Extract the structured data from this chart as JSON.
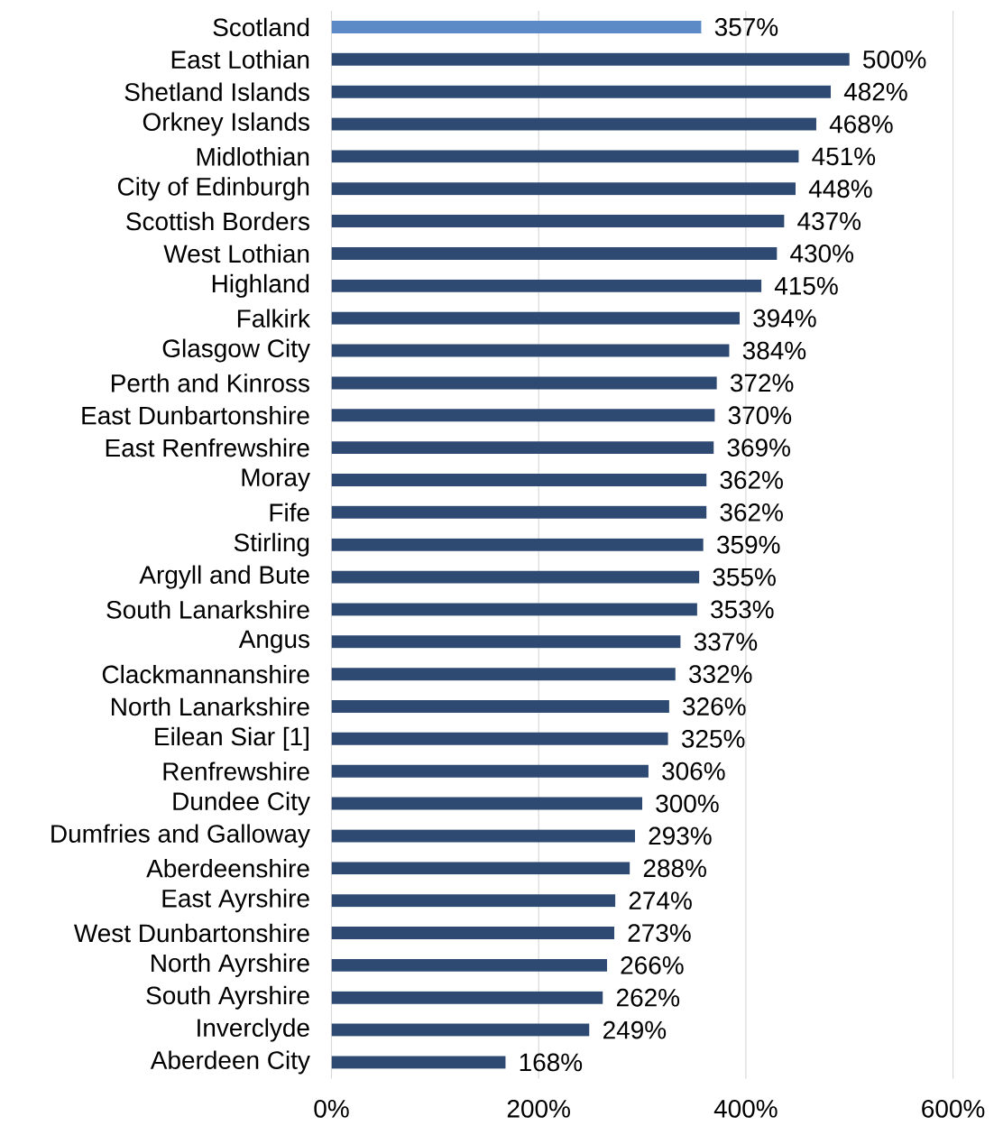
{
  "chart_data": {
    "type": "bar",
    "orientation": "horizontal",
    "categories": [
      "Scotland",
      "East Lothian",
      "Shetland Islands",
      "Orkney Islands",
      "Midlothian",
      "City of Edinburgh",
      "Scottish Borders",
      "West Lothian",
      "Highland",
      "Falkirk",
      "Glasgow City",
      "Perth and Kinross",
      "East Dunbartonshire",
      "East Renfrewshire",
      "Moray",
      "Fife",
      "Stirling",
      "Argyll and Bute",
      "South Lanarkshire",
      "Angus",
      "Clackmannanshire",
      "North Lanarkshire",
      "Eilean Siar [1]",
      "Renfrewshire",
      "Dundee City",
      "Dumfries and Galloway",
      "Aberdeenshire",
      "East Ayrshire",
      "West Dunbartonshire",
      "North Ayrshire",
      "South Ayrshire",
      "Inverclyde",
      "Aberdeen City"
    ],
    "values": [
      357,
      500,
      482,
      468,
      451,
      448,
      437,
      430,
      415,
      394,
      384,
      372,
      370,
      369,
      362,
      362,
      359,
      355,
      353,
      337,
      332,
      326,
      325,
      306,
      300,
      293,
      288,
      274,
      273,
      266,
      262,
      249,
      168
    ],
    "value_labels": [
      "357%",
      "500%",
      "482%",
      "468%",
      "451%",
      "448%",
      "437%",
      "430%",
      "415%",
      "394%",
      "384%",
      "372%",
      "370%",
      "369%",
      "362%",
      "362%",
      "359%",
      "355%",
      "353%",
      "337%",
      "332%",
      "326%",
      "325%",
      "306%",
      "300%",
      "293%",
      "288%",
      "274%",
      "273%",
      "266%",
      "262%",
      "249%",
      "168%"
    ],
    "colors": [
      "#5b8ac6",
      "#2e4a73",
      "#2e4a73",
      "#2e4a73",
      "#2e4a73",
      "#2e4a73",
      "#2e4a73",
      "#2e4a73",
      "#2e4a73",
      "#2e4a73",
      "#2e4a73",
      "#2e4a73",
      "#2e4a73",
      "#2e4a73",
      "#2e4a73",
      "#2e4a73",
      "#2e4a73",
      "#2e4a73",
      "#2e4a73",
      "#2e4a73",
      "#2e4a73",
      "#2e4a73",
      "#2e4a73",
      "#2e4a73",
      "#2e4a73",
      "#2e4a73",
      "#2e4a73",
      "#2e4a73",
      "#2e4a73",
      "#2e4a73",
      "#2e4a73",
      "#2e4a73",
      "#2e4a73"
    ],
    "xlim": [
      0,
      600
    ],
    "xticks": [
      {
        "value": 0,
        "label": "0%"
      },
      {
        "value": 200,
        "label": "200%"
      },
      {
        "value": 400,
        "label": "400%"
      },
      {
        "value": 600,
        "label": "600%"
      }
    ],
    "grid": "x"
  }
}
